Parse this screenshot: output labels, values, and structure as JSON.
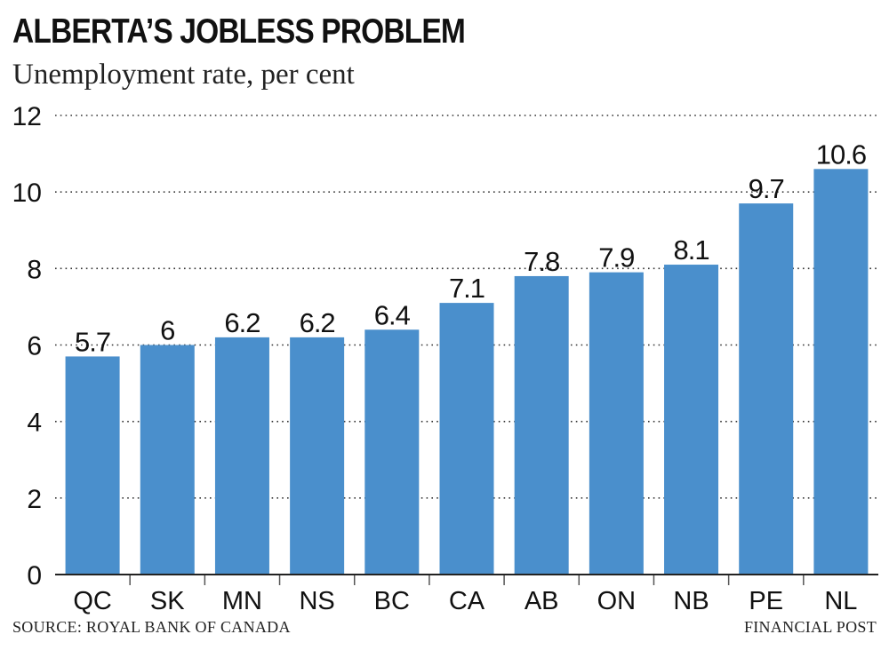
{
  "title": "ALBERTA’S JOBLESS PROBLEM",
  "subtitle": "Unemployment rate, per cent",
  "source": "SOURCE: ROYAL BANK OF CANADA",
  "credit": "FINANCIAL POST",
  "colors": {
    "bar": "#4a8fcc",
    "grid": "#333333",
    "text": "#111111"
  },
  "chart_data": {
    "type": "bar",
    "categories": [
      "QC",
      "SK",
      "MN",
      "NS",
      "BC",
      "CA",
      "AB",
      "ON",
      "NB",
      "PE",
      "NL"
    ],
    "values": [
      5.7,
      6,
      6.2,
      6.2,
      6.4,
      7.1,
      7.8,
      7.9,
      8.1,
      9.7,
      10.6
    ],
    "data_labels": [
      "5.7",
      "6",
      "6.2",
      "6.2",
      "6.4",
      "7.1",
      "7.8",
      "7.9",
      "8.1",
      "9.7",
      "10.6"
    ],
    "yticks": [
      0,
      2,
      4,
      6,
      8,
      10,
      12
    ],
    "ylim": [
      0,
      12
    ],
    "grid": true,
    "legend": "none"
  }
}
